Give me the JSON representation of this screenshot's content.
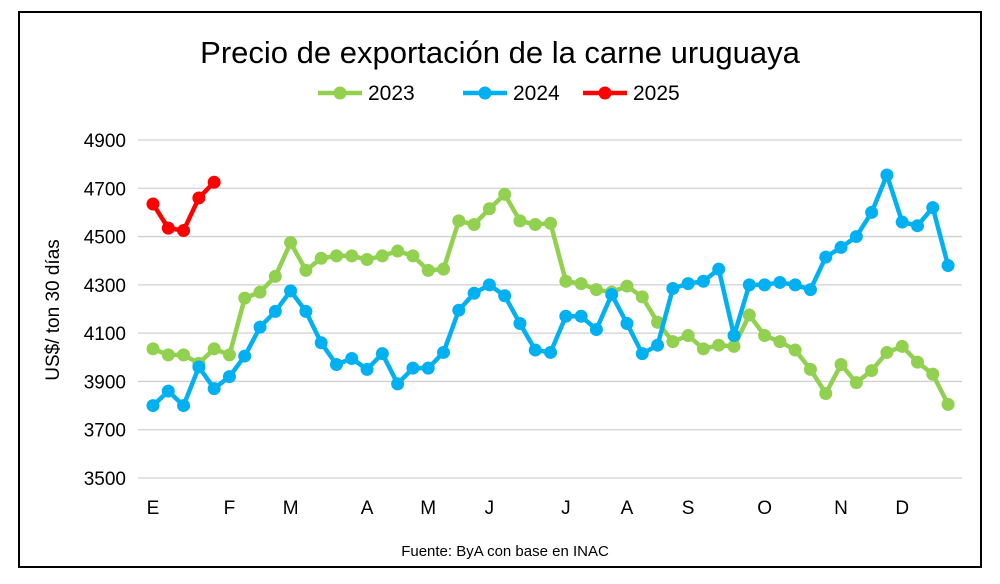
{
  "chart_data": {
    "type": "line",
    "title": "Precio de exportación de la carne uruguaya",
    "ylabel": "US$/ ton 30 días",
    "xlabel": "",
    "source": "Fuente: ByA con base en INAC",
    "ylim": [
      3500,
      4900
    ],
    "yticks": [
      3500,
      3700,
      3900,
      4100,
      4300,
      4500,
      4700,
      4900
    ],
    "grid": true,
    "legend_position": "top",
    "month_ticks": [
      {
        "label": "E",
        "index": 0
      },
      {
        "label": "F",
        "index": 5
      },
      {
        "label": "M",
        "index": 9
      },
      {
        "label": "A",
        "index": 14
      },
      {
        "label": "M",
        "index": 18
      },
      {
        "label": "J",
        "index": 22
      },
      {
        "label": "J",
        "index": 27
      },
      {
        "label": "A",
        "index": 31
      },
      {
        "label": "S",
        "index": 35
      },
      {
        "label": "O",
        "index": 40
      },
      {
        "label": "N",
        "index": 45
      },
      {
        "label": "D",
        "index": 49
      }
    ],
    "series": [
      {
        "name": "2023",
        "color": "#92d050",
        "values": [
          4035,
          4010,
          4010,
          3975,
          4035,
          4010,
          4245,
          4270,
          4335,
          4475,
          4360,
          4410,
          4420,
          4420,
          4405,
          4420,
          4440,
          4420,
          4360,
          4365,
          4565,
          4550,
          4615,
          4675,
          4565,
          4550,
          4555,
          4315,
          4305,
          4280,
          4270,
          4295,
          4250,
          4145,
          4065,
          4090,
          4035,
          4050,
          4045,
          4175,
          4090,
          4065,
          4030,
          3950,
          3850,
          3970,
          3895,
          3945,
          4020,
          4045,
          3980,
          3930,
          3805
        ]
      },
      {
        "name": "2024",
        "color": "#00b0f0",
        "values": [
          3800,
          3860,
          3800,
          3960,
          3870,
          3920,
          4005,
          4125,
          4190,
          4275,
          4190,
          4060,
          3970,
          3995,
          3950,
          4015,
          3890,
          3955,
          3955,
          4020,
          4195,
          4265,
          4300,
          4255,
          4140,
          4030,
          4020,
          4170,
          4170,
          4115,
          4260,
          4140,
          4015,
          4050,
          4285,
          4305,
          4315,
          4365,
          4090,
          4300,
          4300,
          4310,
          4300,
          4280,
          4415,
          4455,
          4500,
          4600,
          4755,
          4560,
          4545,
          4620,
          4380
        ]
      },
      {
        "name": "2025",
        "color": "#ff0000",
        "values": [
          4635,
          4535,
          4525,
          4660,
          4725
        ]
      }
    ]
  }
}
